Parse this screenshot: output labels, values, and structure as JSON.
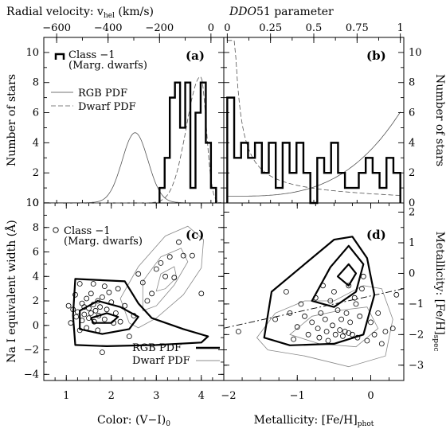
{
  "figure": {
    "top_axis_left": {
      "title": "Radial velocity: v",
      "title_sub": "hel",
      "title_unit": " (km/s)",
      "ticks": [
        "−600",
        "−400",
        "−200",
        "0"
      ]
    },
    "top_axis_right": {
      "title_italic": "DDO",
      "title_rest": "51 parameter",
      "ticks": [
        "0",
        "0.25",
        "0.5",
        "0.75",
        "1"
      ]
    },
    "y_left_top": {
      "title": "Number of stars",
      "ticks": [
        "0",
        "2",
        "4",
        "6",
        "8",
        "10"
      ]
    },
    "y_right_top": {
      "title": "Number of stars",
      "ticks": [
        "0",
        "2",
        "4",
        "6",
        "8",
        "10"
      ]
    },
    "y_left_bottom": {
      "title": "Na I equivalent width (Å)",
      "ticks": [
        "−4",
        "−2",
        "0",
        "2",
        "4",
        "6",
        "8",
        "10"
      ]
    },
    "y_right_bottom": {
      "title": "Metallicity: [Fe/H]",
      "title_sub": "spec",
      "ticks": [
        "−3",
        "−2",
        "−1",
        "0",
        "1",
        "2"
      ]
    },
    "x_bottom_left": {
      "title": "Color: (V−I)",
      "title_sub": "0",
      "ticks": [
        "1",
        "2",
        "3",
        "4"
      ]
    },
    "x_bottom_right": {
      "title": "Metallicity: [Fe/H]",
      "title_sub": "phot",
      "ticks": [
        "−2",
        "−1",
        "0"
      ]
    },
    "panel_a": {
      "label": "(a)",
      "legend_class": "Class −1",
      "legend_class2": "(Marg. dwarfs)",
      "legend_rgb": "RGB PDF",
      "legend_dwarf": "Dwarf PDF"
    },
    "panel_b": {
      "label": "(b)"
    },
    "panel_c": {
      "label": "(c)",
      "legend_class": "Class −1",
      "legend_class2": "(Marg. dwarfs)",
      "legend_rgb": "RGB PDF",
      "legend_dwarf": "Dwarf PDF"
    },
    "panel_d": {
      "label": "(d)"
    }
  },
  "chart_data": [
    {
      "panel": "a",
      "type": "histogram",
      "xlabel": "Radial velocity: v_hel (km/s)",
      "ylabel": "Number of stars",
      "xlim": [
        -650,
        50
      ],
      "ylim": [
        0,
        11
      ],
      "bin_edges": [
        -200,
        -180,
        -160,
        -140,
        -120,
        -100,
        -80,
        -60,
        -40,
        -20,
        0,
        20
      ],
      "counts": [
        1,
        3,
        7,
        8,
        5,
        8,
        1,
        6,
        8,
        4,
        1
      ],
      "series": [
        {
          "name": "Class −1",
          "style": "thick-step"
        },
        {
          "name": "RGB PDF",
          "style": "thin-solid",
          "center": -295,
          "sigma": 50,
          "peak": 4.65
        },
        {
          "name": "Dwarf PDF",
          "style": "dashed",
          "center": -40,
          "sigma_left": 55,
          "sigma_right": 22,
          "peak": 8.4
        }
      ]
    },
    {
      "panel": "b",
      "type": "histogram",
      "xlabel": "DDO51 parameter",
      "ylabel": "Number of stars",
      "xlim": [
        -0.02,
        1.02
      ],
      "ylim": [
        0,
        11
      ],
      "bin_edges": [
        0.0,
        0.04,
        0.08,
        0.12,
        0.16,
        0.2,
        0.24,
        0.28,
        0.32,
        0.36,
        0.4,
        0.44,
        0.48,
        0.52,
        0.56,
        0.6,
        0.64,
        0.68,
        0.72,
        0.76,
        0.8,
        0.84,
        0.88,
        0.92,
        0.96,
        1.0
      ],
      "counts": [
        7,
        3,
        4,
        3,
        4,
        2,
        4,
        1,
        4,
        2,
        4,
        2,
        0,
        3,
        2,
        4,
        2,
        1,
        1,
        2,
        3,
        2,
        1,
        3,
        2
      ],
      "series": [
        {
          "name": "Class −1",
          "style": "thick-step"
        },
        {
          "name": "RGB PDF",
          "style": "thin-solid"
        },
        {
          "name": "Dwarf PDF",
          "style": "dashed"
        }
      ]
    },
    {
      "panel": "c",
      "type": "scatter",
      "xlabel": "Color: (V−I)_0",
      "ylabel": "Na I equivalent width (Å)",
      "xlim": [
        0.5,
        4.5
      ],
      "ylim": [
        -4.5,
        10
      ],
      "points": [
        [
          1.05,
          1.6
        ],
        [
          1.1,
          0.2
        ],
        [
          1.15,
          1.3
        ],
        [
          1.2,
          2.5
        ],
        [
          1.22,
          0.7
        ],
        [
          1.25,
          1.1
        ],
        [
          1.3,
          -0.4
        ],
        [
          1.3,
          3.4
        ],
        [
          1.35,
          1.8
        ],
        [
          1.35,
          0.4
        ],
        [
          1.4,
          1.5
        ],
        [
          1.4,
          0.9
        ],
        [
          1.45,
          2.2
        ],
        [
          1.45,
          -0.2
        ],
        [
          1.5,
          1.4
        ],
        [
          1.5,
          0.6
        ],
        [
          1.55,
          2.6
        ],
        [
          1.55,
          1.0
        ],
        [
          1.6,
          1.7
        ],
        [
          1.6,
          3.4
        ],
        [
          1.62,
          0.3
        ],
        [
          1.65,
          1.2
        ],
        [
          1.7,
          2.0
        ],
        [
          1.7,
          -0.4
        ],
        [
          1.72,
          0.8
        ],
        [
          1.75,
          1.5
        ],
        [
          1.8,
          2.3
        ],
        [
          1.8,
          -2.2
        ],
        [
          1.85,
          3.2
        ],
        [
          1.85,
          0.5
        ],
        [
          1.9,
          1.3
        ],
        [
          1.95,
          2.7
        ],
        [
          2.0,
          1.9
        ],
        [
          2.05,
          0.2
        ],
        [
          2.1,
          1.0
        ],
        [
          2.15,
          3.0
        ],
        [
          2.2,
          0.3
        ],
        [
          2.3,
          1.6
        ],
        [
          2.4,
          -0.9
        ],
        [
          2.5,
          0.8
        ],
        [
          2.6,
          4.2
        ],
        [
          2.7,
          3.5
        ],
        [
          2.8,
          2.0
        ],
        [
          2.9,
          2.6
        ],
        [
          3.0,
          4.6
        ],
        [
          3.1,
          5.1
        ],
        [
          3.2,
          4.0
        ],
        [
          3.3,
          5.6
        ],
        [
          3.4,
          3.9
        ],
        [
          3.5,
          6.8
        ],
        [
          3.6,
          5.7
        ],
        [
          3.8,
          5.7
        ],
        [
          4.0,
          2.6
        ]
      ]
    },
    {
      "panel": "d",
      "type": "scatter",
      "xlabel": "Metallicity: [Fe/H]_phot",
      "ylabel": "Metallicity: [Fe/H]_spec",
      "xlim": [
        -2.0,
        0.45
      ],
      "ylim": [
        -3.5,
        2.3
      ],
      "line": {
        "x": [
          -2.0,
          0.45
        ],
        "y": [
          -1.79,
          -0.5
        ],
        "style": "dash-dot"
      },
      "points": [
        [
          -1.8,
          -1.9
        ],
        [
          -1.3,
          -1.5
        ],
        [
          -1.15,
          -0.6
        ],
        [
          -1.1,
          -1.3
        ],
        [
          -1.05,
          -2.15
        ],
        [
          -1.0,
          -1.75
        ],
        [
          -0.95,
          -1.0
        ],
        [
          -0.9,
          -1.4
        ],
        [
          -0.85,
          -2.0
        ],
        [
          -0.8,
          -1.6
        ],
        [
          -0.75,
          -0.8
        ],
        [
          -0.72,
          -1.8
        ],
        [
          -0.7,
          -2.1
        ],
        [
          -0.68,
          -1.3
        ],
        [
          -0.65,
          -0.4
        ],
        [
          -0.62,
          -1.5
        ],
        [
          -0.6,
          -1.9
        ],
        [
          -0.58,
          -2.2
        ],
        [
          -0.55,
          -0.9
        ],
        [
          -0.52,
          -1.7
        ],
        [
          -0.5,
          -0.6
        ],
        [
          -0.48,
          -2.0
        ],
        [
          -0.45,
          -1.2
        ],
        [
          -0.42,
          -1.85
        ],
        [
          -0.4,
          -1.5
        ],
        [
          -0.38,
          -2.05
        ],
        [
          -0.35,
          -1.9
        ],
        [
          -0.33,
          -1.3
        ],
        [
          -0.3,
          -0.4
        ],
        [
          -0.3,
          -1.95
        ],
        [
          -0.28,
          -1.6
        ],
        [
          -0.25,
          -2.0
        ],
        [
          -0.22,
          -0.8
        ],
        [
          -0.2,
          -1.0
        ],
        [
          -0.18,
          -2.1
        ],
        [
          -0.15,
          -1.4
        ],
        [
          -0.12,
          -0.5
        ],
        [
          -0.1,
          -0.1
        ],
        [
          -0.05,
          -2.2
        ],
        [
          0.0,
          -1.6
        ],
        [
          0.05,
          -2.0
        ],
        [
          0.1,
          -1.3
        ],
        [
          0.15,
          -2.3
        ],
        [
          0.2,
          -1.9
        ],
        [
          0.3,
          -1.8
        ],
        [
          0.35,
          -0.7
        ]
      ]
    }
  ]
}
